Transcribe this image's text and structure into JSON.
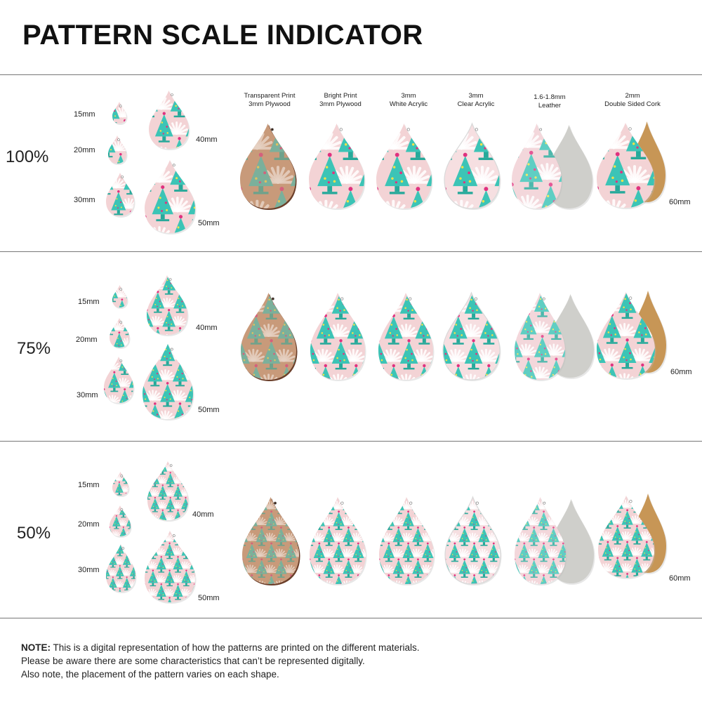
{
  "title": "PATTERN SCALE INDICATOR",
  "colors": {
    "pink": "#f3d3d5",
    "tree": "#3cc4b6",
    "tree_dark": "#26a99a",
    "star_pink": "#e0327f",
    "star_yellow": "#f2e24a",
    "wood": "#c89a7a",
    "wood_edge": "#6b3f2a",
    "suede": "#cfcfcb",
    "cork": "#c79656"
  },
  "materials": [
    {
      "line1": "Transparent Print",
      "line2": "3mm Plywood"
    },
    {
      "line1": "Bright Print",
      "line2": "3mm Plywood"
    },
    {
      "line1": "3mm",
      "line2": "White Acrylic"
    },
    {
      "line1": "3mm",
      "line2": "Clear Acrylic"
    },
    {
      "line1": "1.6-1.8mm",
      "line2": "Leather"
    },
    {
      "line1": "2mm",
      "line2": "Double Sided Cork"
    }
  ],
  "rows": [
    {
      "scale": "100%",
      "sizes": [
        "15mm",
        "20mm",
        "30mm",
        "40mm",
        "50mm"
      ],
      "material_size": "60mm"
    },
    {
      "scale": "75%",
      "sizes": [
        "15mm",
        "20mm",
        "30mm",
        "40mm",
        "50mm"
      ],
      "material_size": "60mm"
    },
    {
      "scale": "50%",
      "sizes": [
        "15mm",
        "20mm",
        "30mm",
        "40mm",
        "50mm"
      ],
      "material_size": "60mm"
    }
  ],
  "note": {
    "bold": "NOTE:",
    "line1": " This is a digital representation of how the patterns are printed on the different materials.",
    "line2": "Please be aware there are some characteristics that can’t be represented digitally.",
    "line3": "Also note, the placement of the pattern varies on each shape."
  }
}
